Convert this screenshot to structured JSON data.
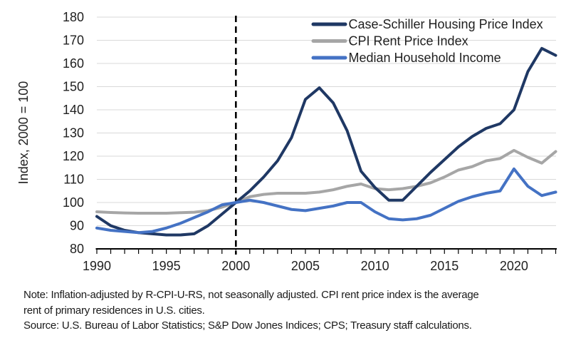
{
  "notes": {
    "line1": "Note: Inflation-adjusted by R-CPI-U-RS, not seasonally adjusted. CPI rent price index is the average",
    "line2": "rent of primary residences in U.S. cities.",
    "source": "Source: U.S. Bureau of Labor Statistics; S&P Dow Jones Indices; CPS; Treasury staff calculations."
  },
  "chart_data": {
    "type": "line",
    "title": "",
    "xlabel": "",
    "ylabel": "Index, 2000 = 100",
    "xlim": [
      1990,
      2023
    ],
    "ylim": [
      80,
      180
    ],
    "grid": true,
    "legend_position": "top-right",
    "reference_line_x": 2000,
    "xticks": [
      1990,
      1995,
      2000,
      2005,
      2010,
      2015,
      2020
    ],
    "yticks": [
      80,
      90,
      100,
      110,
      120,
      130,
      140,
      150,
      160,
      170,
      180
    ],
    "x": [
      1990,
      1991,
      1992,
      1993,
      1994,
      1995,
      1996,
      1997,
      1998,
      1999,
      2000,
      2001,
      2002,
      2003,
      2004,
      2005,
      2006,
      2007,
      2008,
      2009,
      2010,
      2011,
      2012,
      2013,
      2014,
      2015,
      2016,
      2017,
      2018,
      2019,
      2020,
      2021,
      2022,
      2023
    ],
    "series": [
      {
        "name": "Case-Schiller Housing Price Index",
        "color": "#1f3864",
        "values": [
          94,
          90,
          88,
          87,
          86.5,
          86,
          86,
          86.5,
          90,
          95,
          100,
          105,
          111,
          118,
          128,
          144.5,
          149.5,
          143,
          131,
          113.5,
          106.5,
          101,
          101,
          107,
          113,
          118.5,
          124,
          128.5,
          132,
          134,
          140,
          156.5,
          166.5,
          163.5
        ]
      },
      {
        "name": "CPI Rent Price Index",
        "color": "#a6a6a6",
        "values": [
          96,
          95.7,
          95.5,
          95.4,
          95.4,
          95.4,
          95.6,
          95.8,
          96.5,
          98,
          100,
          102.5,
          103.5,
          104,
          104,
          104,
          104.5,
          105.5,
          107,
          108,
          106,
          105.5,
          106,
          107,
          108.5,
          111,
          114,
          115.5,
          118,
          119,
          122.5,
          119.5,
          117,
          122
        ]
      },
      {
        "name": "Median Household Income",
        "color": "#4472c4",
        "values": [
          89,
          88,
          87.5,
          87,
          87.5,
          89,
          91,
          93.5,
          96,
          99,
          100,
          101,
          100,
          98.5,
          97,
          96.5,
          97.5,
          98.5,
          100,
          100,
          96,
          93,
          92.5,
          93,
          94.5,
          97.5,
          100.5,
          102.5,
          104,
          105,
          114.5,
          107,
          103,
          104.5
        ]
      }
    ],
    "style": {
      "gridline_color": "#d9d9d9",
      "axis_color": "#000000",
      "reference_line_color": "#000000",
      "text_color": "#1f1f1f"
    }
  }
}
